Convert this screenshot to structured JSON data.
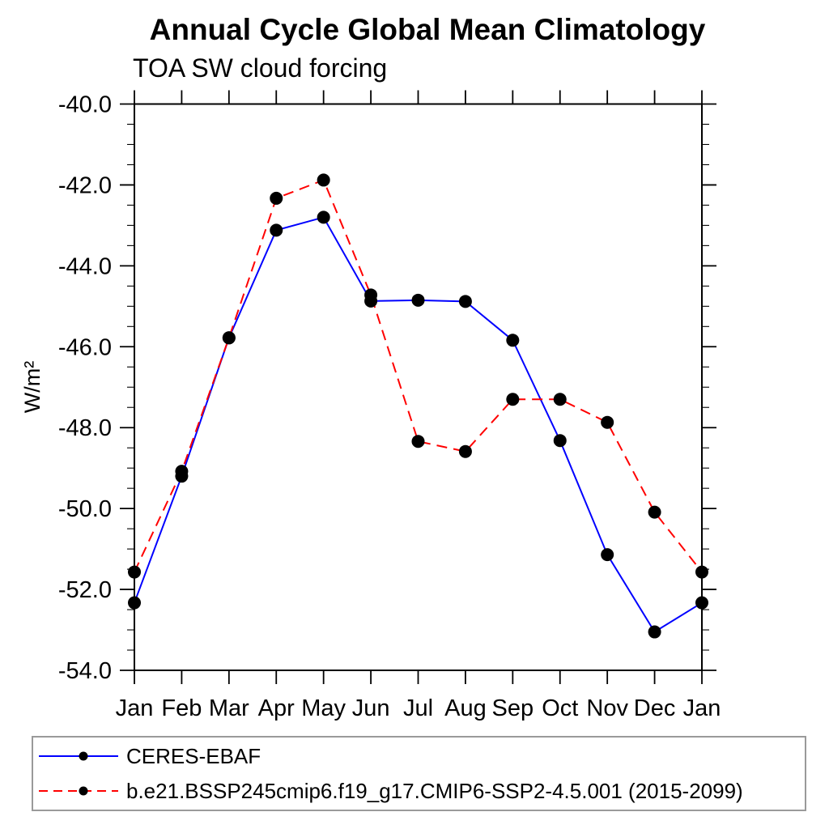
{
  "chart_data": {
    "type": "line",
    "title": "Annual Cycle Global Mean Climatology",
    "subtitle": "TOA SW cloud forcing",
    "ylabel": "W/m²",
    "xlabel": "",
    "categories": [
      "Jan",
      "Feb",
      "Mar",
      "Apr",
      "May",
      "Jun",
      "Jul",
      "Aug",
      "Sep",
      "Oct",
      "Nov",
      "Dec",
      "Jan"
    ],
    "series": [
      {
        "id": "ceres-ebaf",
        "name": "CERES-EBAF",
        "color": "#0000ff",
        "line_style": "solid",
        "marker": "circle",
        "values": [
          -52.33,
          -49.2,
          -45.78,
          -43.12,
          -42.8,
          -44.87,
          -44.85,
          -44.88,
          -45.84,
          -48.32,
          -51.14,
          -53.05,
          -52.33
        ]
      },
      {
        "id": "model",
        "name": "b.e21.BSSP245cmip6.f19_g17.CMIP6-SSP2-4.5.001 (2015-2099)",
        "color": "#ff0000",
        "line_style": "dashed",
        "marker": "circle",
        "values": [
          -51.57,
          -49.08,
          -45.78,
          -42.33,
          -41.88,
          -44.72,
          -48.34,
          -48.59,
          -47.3,
          -47.3,
          -47.87,
          -50.09,
          -51.57
        ]
      }
    ],
    "ylim": [
      -54,
      -40
    ],
    "yticks_major": [
      -40,
      -42,
      -44,
      -46,
      -48,
      -50,
      -52,
      -54
    ],
    "ytick_minor_step": 0.5,
    "ytick_label_format": "one_decimal",
    "grid": false,
    "legend_position": "bottom-left",
    "marker_color": "#000000",
    "axis_color": "#000000"
  }
}
